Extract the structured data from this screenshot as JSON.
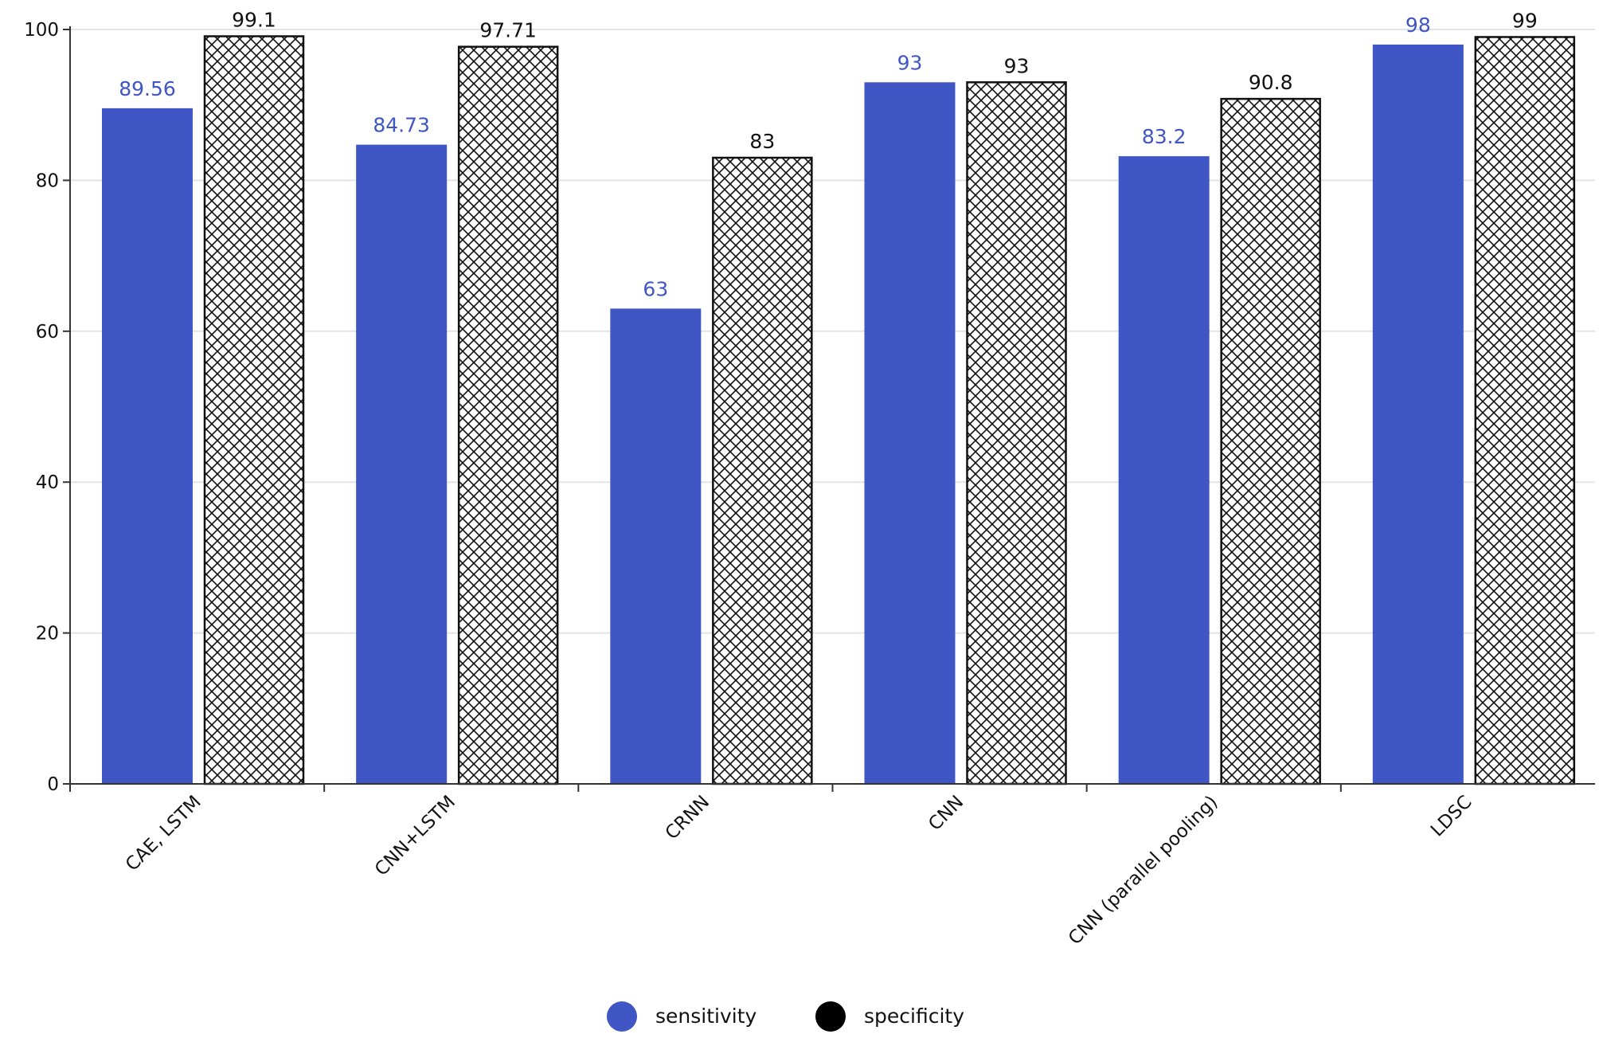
{
  "chart_data": {
    "type": "bar",
    "title": "",
    "xlabel": "",
    "ylabel": "",
    "categories": [
      "CAE, LSTM",
      "CNN+LSTM",
      "CRNN",
      "CNN",
      "CNN (parallel pooling)",
      "LDSC"
    ],
    "series": [
      {
        "name": "sensitivity",
        "values": [
          89.56,
          84.73,
          63,
          93,
          83.2,
          98
        ],
        "labels": [
          "89.56",
          "84.73",
          "63",
          "93",
          "83.2",
          "98"
        ],
        "color": "#3f56c4",
        "fill_style": "solid"
      },
      {
        "name": "specificity",
        "values": [
          99.1,
          97.71,
          83,
          93,
          90.8,
          99
        ],
        "labels": [
          "99.1",
          "97.71",
          "83",
          "93",
          "90.8",
          "99"
        ],
        "color": "#000000",
        "fill_style": "crosshatch"
      }
    ],
    "ylim": [
      0,
      100
    ],
    "yticks": [
      0,
      20,
      40,
      60,
      80,
      100
    ],
    "ytick_labels": [
      "0",
      "20",
      "40",
      "60",
      "80",
      "100"
    ],
    "grid": true,
    "legend_position": "bottom-center"
  },
  "legend": {
    "items": [
      {
        "label": "sensitivity",
        "color": "#3f56c4"
      },
      {
        "label": "specificity",
        "color": "#000000"
      }
    ]
  }
}
